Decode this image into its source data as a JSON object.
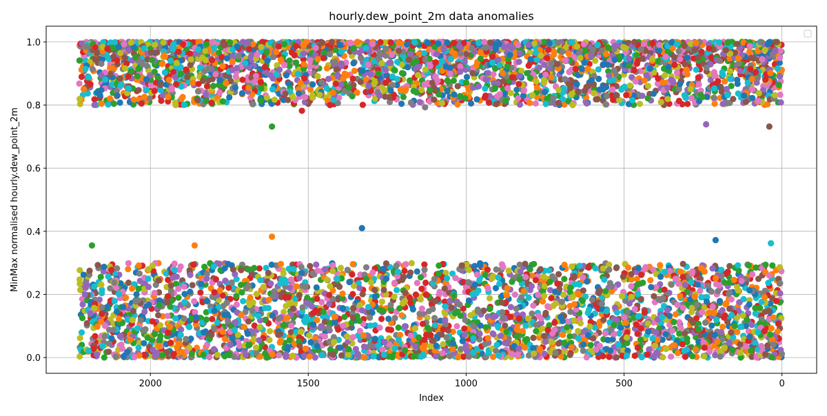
{
  "chart_data": {
    "type": "scatter",
    "title": "hourly.dew_point_2m data anomalies",
    "xlabel": "Index",
    "ylabel": "MinMax normalised hourly.dew_point_2m",
    "xlim": [
      2330,
      -110
    ],
    "ylim": [
      -0.05,
      1.05
    ],
    "x_inverted": true,
    "x_ticks": [
      2000,
      1500,
      1000,
      500,
      0
    ],
    "x_tick_labels": [
      "2000",
      "1500",
      "1000",
      "500",
      "0"
    ],
    "y_ticks": [
      0.0,
      0.2,
      0.4,
      0.6,
      0.8,
      1.0
    ],
    "y_tick_labels": [
      "0.0",
      "0.2",
      "0.4",
      "0.6",
      "0.8",
      "1.0"
    ],
    "grid": true,
    "legend": "top-right (empty)",
    "x_range_of_points": [
      0,
      2225
    ],
    "bands": [
      {
        "y_min": 0.0,
        "y_max": 0.3,
        "density": "dense"
      },
      {
        "y_min": 0.8,
        "y_max": 1.0,
        "density": "dense"
      }
    ],
    "palette": [
      "#1f77b4",
      "#ff7f0e",
      "#2ca02c",
      "#d62728",
      "#9467bd",
      "#8c564b",
      "#e377c2",
      "#7f7f7f",
      "#bcbd22",
      "#17becf"
    ],
    "notable_points": [
      {
        "x": 1330,
        "y": 0.41
      },
      {
        "x": 1615,
        "y": 0.383
      },
      {
        "x": 1615,
        "y": 0.732
      },
      {
        "x": 1520,
        "y": 0.782
      },
      {
        "x": 240,
        "y": 0.739
      },
      {
        "x": 40,
        "y": 0.732
      },
      {
        "x": 2225,
        "y": 0.868
      },
      {
        "x": 1130,
        "y": 0.793
      },
      {
        "x": 1920,
        "y": 0.8
      },
      {
        "x": 35,
        "y": 0.362
      },
      {
        "x": 210,
        "y": 0.372
      },
      {
        "x": 1860,
        "y": 0.355
      },
      {
        "x": 2185,
        "y": 0.355
      }
    ]
  }
}
